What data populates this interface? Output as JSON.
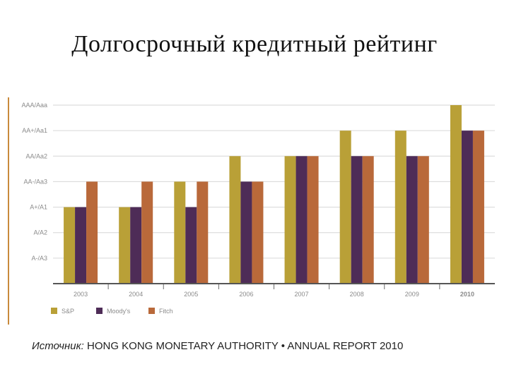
{
  "title": "Долгосрочный кредитный рейтинг",
  "source": {
    "prefix": "Источник:",
    "text": " HONG KONG MONETARY AUTHORITY • ANNUAL REPORT 2010"
  },
  "chart_data": {
    "type": "bar",
    "categories": [
      "2003",
      "2004",
      "2005",
      "2006",
      "2007",
      "2008",
      "2009",
      "2010"
    ],
    "highlight_category": "2010",
    "y_levels": [
      "A-/A3",
      "A/A2",
      "A+/A1",
      "AA-/Aa3",
      "AA/Aa2",
      "AA+/Aa1",
      "AAA/Aaa"
    ],
    "ylim": [
      0,
      7
    ],
    "grid": true,
    "legend_position": "bottom-left",
    "series": [
      {
        "name": "S&P",
        "color": "#b9a037",
        "values": [
          3,
          3,
          4,
          5,
          5,
          6,
          6,
          7
        ]
      },
      {
        "name": "Moody's",
        "color": "#4e2c57",
        "values": [
          3,
          3,
          3,
          4,
          5,
          5,
          5,
          6
        ]
      },
      {
        "name": "Fitch",
        "color": "#b9693a",
        "values": [
          4,
          4,
          4,
          4,
          5,
          5,
          5,
          6
        ]
      }
    ]
  }
}
